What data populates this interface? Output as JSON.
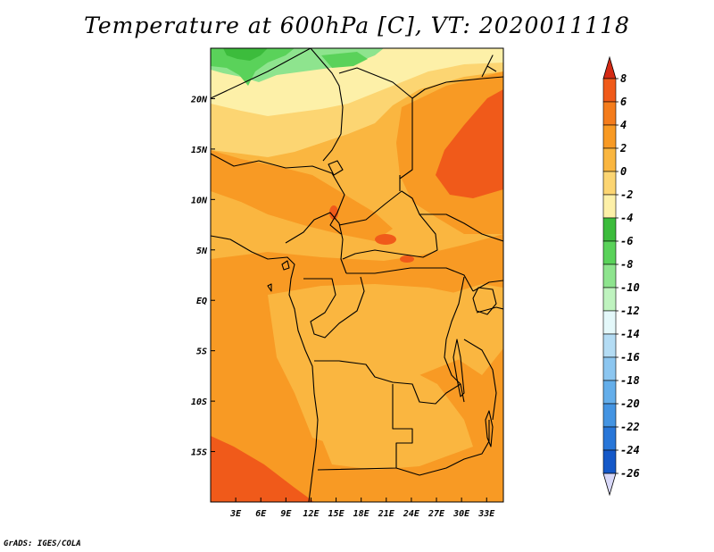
{
  "title": "Temperature at 600hPa [C], VT: 2020011118",
  "credit": "GrADS: IGES/COLA",
  "map": {
    "lon_range": [
      0,
      35
    ],
    "lat_range": [
      -20,
      25
    ],
    "x_ticks": [
      {
        "value": 3,
        "label": "3E"
      },
      {
        "value": 6,
        "label": "6E"
      },
      {
        "value": 9,
        "label": "9E"
      },
      {
        "value": 12,
        "label": "12E"
      },
      {
        "value": 15,
        "label": "15E"
      },
      {
        "value": 18,
        "label": "18E"
      },
      {
        "value": 21,
        "label": "21E"
      },
      {
        "value": 24,
        "label": "24E"
      },
      {
        "value": 27,
        "label": "27E"
      },
      {
        "value": 30,
        "label": "30E"
      },
      {
        "value": 33,
        "label": "33E"
      }
    ],
    "y_ticks": [
      {
        "value": 20,
        "label": "20N"
      },
      {
        "value": 15,
        "label": "15N"
      },
      {
        "value": 10,
        "label": "10N"
      },
      {
        "value": 5,
        "label": "5N"
      },
      {
        "value": 0,
        "label": "EQ"
      },
      {
        "value": -5,
        "label": "5S"
      },
      {
        "value": -10,
        "label": "10S"
      },
      {
        "value": -15,
        "label": "15S"
      }
    ]
  },
  "colorbar": {
    "levels": [
      "8",
      "6",
      "4",
      "2",
      "0",
      "-2",
      "-4",
      "-6",
      "-8",
      "-10",
      "-12",
      "-14",
      "-16",
      "-18",
      "-20",
      "-22",
      "-24",
      "-26"
    ],
    "colors": [
      "#e8401c",
      "#f05a1a",
      "#f47c1c",
      "#f89a24",
      "#fab640",
      "#fcd572",
      "#fdf0a8",
      "#3cbc3c",
      "#5ad25a",
      "#8ee48e",
      "#bff3bf",
      "#e4f8fa",
      "#b4dcf4",
      "#8cc6f0",
      "#64aeea",
      "#4494e2",
      "#2876d8",
      "#1458c8",
      "#0a1e7a"
    ],
    "top_arrow_color": "#d42a14",
    "bottom_arrow_color": "#d8d8f8"
  }
}
